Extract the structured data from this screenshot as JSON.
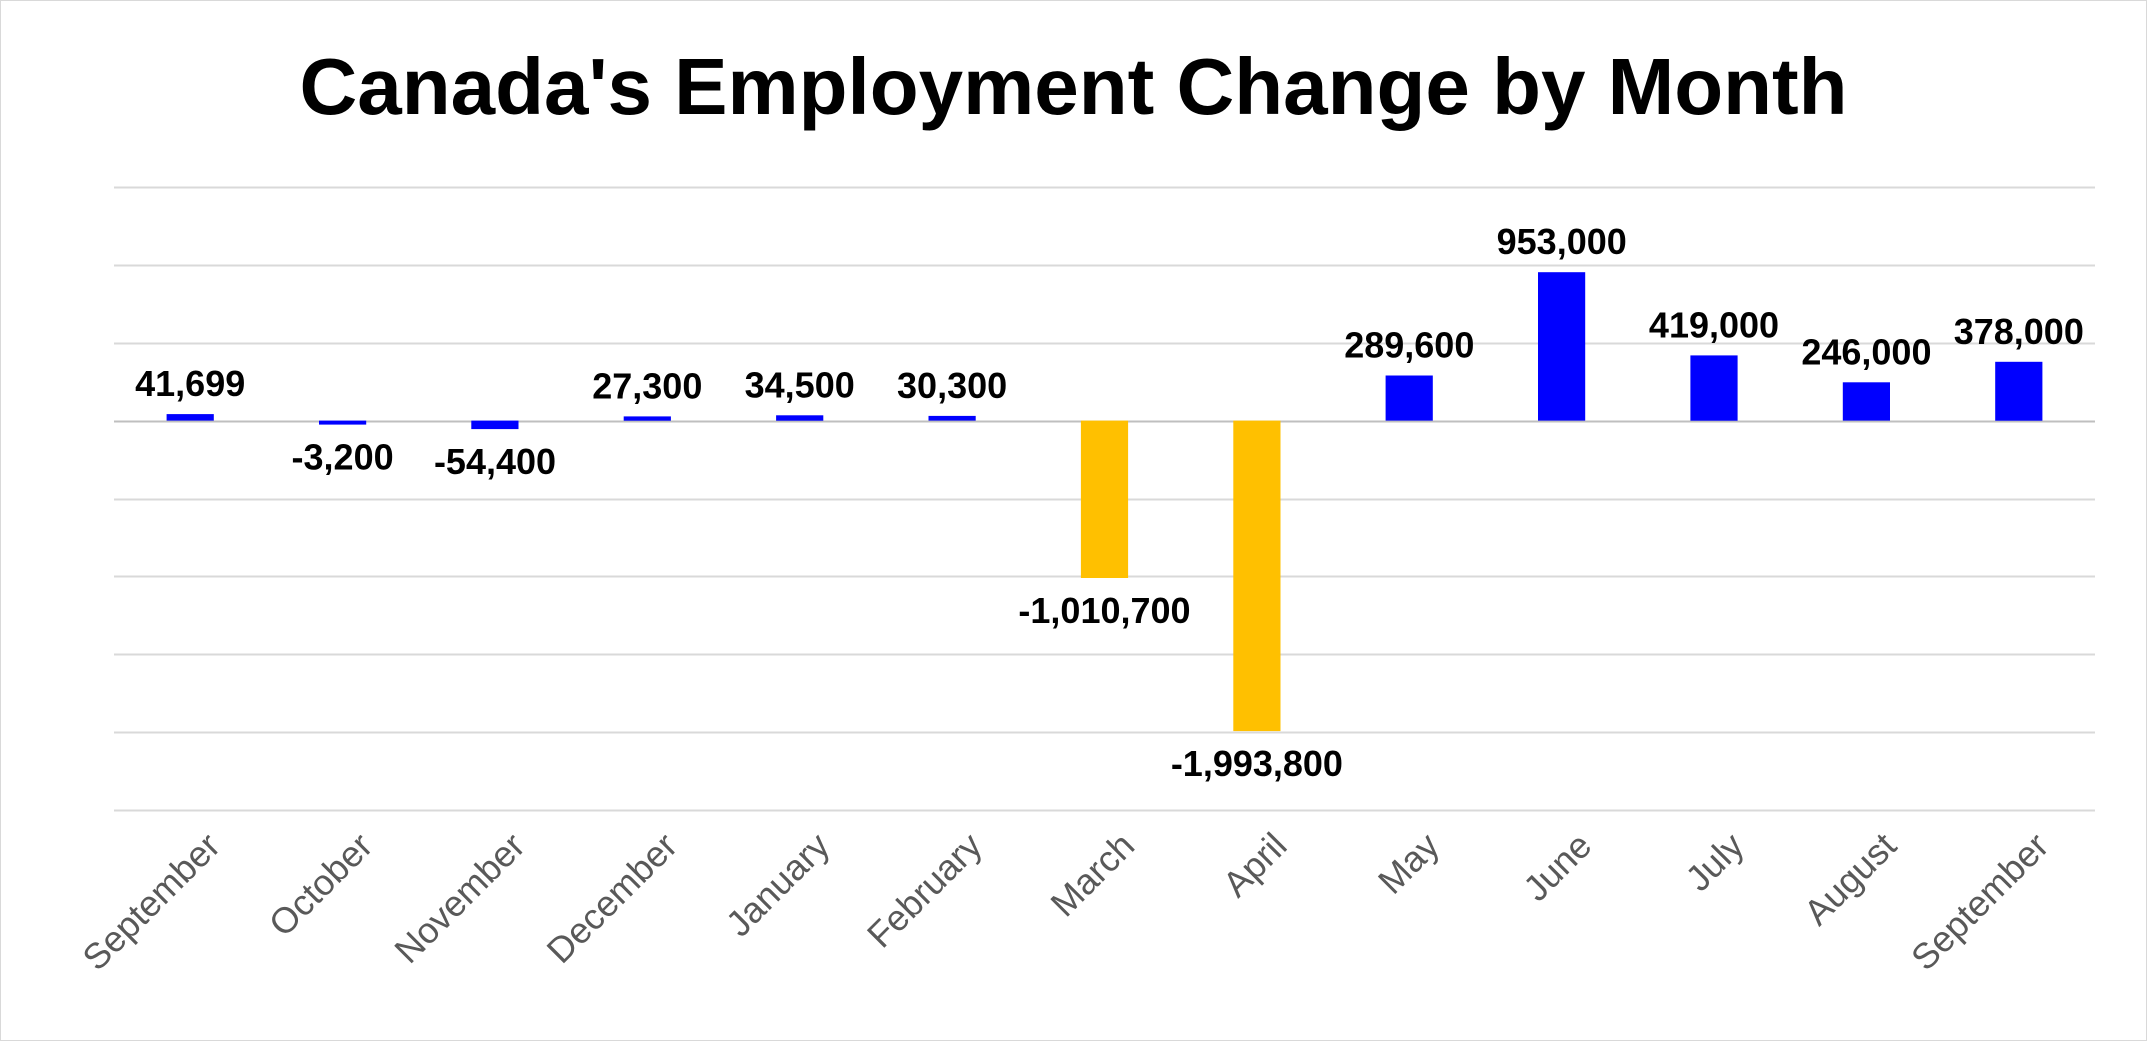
{
  "chart_data": {
    "type": "bar",
    "title": "Canada's Employment Change by Month",
    "xlabel": "",
    "ylabel": "",
    "categories": [
      "September",
      "October",
      "November",
      "December",
      "January",
      "February",
      "March",
      "April",
      "May",
      "June",
      "July",
      "August",
      "September"
    ],
    "values": [
      41699,
      -3200,
      -54400,
      27300,
      34500,
      30300,
      -1010700,
      -1993800,
      289600,
      953000,
      419000,
      246000,
      378000
    ],
    "data_labels": [
      "41,699",
      "-3,200",
      "-54,400",
      "27,300",
      "34,500",
      "30,300",
      "-1,010,700",
      "-1,993,800",
      "289,600",
      "953,000",
      "419,000",
      "246,000",
      "378,000"
    ],
    "highlighted": [
      false,
      false,
      false,
      false,
      false,
      false,
      true,
      true,
      false,
      false,
      false,
      false,
      false
    ],
    "ylim": [
      -2500000,
      1500000
    ],
    "y_gridline_step": 500000,
    "y_tick_labels_shown": false,
    "grid": true,
    "legend": "none",
    "colors": {
      "bar": "#0000ff",
      "highlight": "#ffc000",
      "gridline": "#d9d9d9",
      "tick_label": "#595959",
      "data_label": "#000000"
    }
  }
}
